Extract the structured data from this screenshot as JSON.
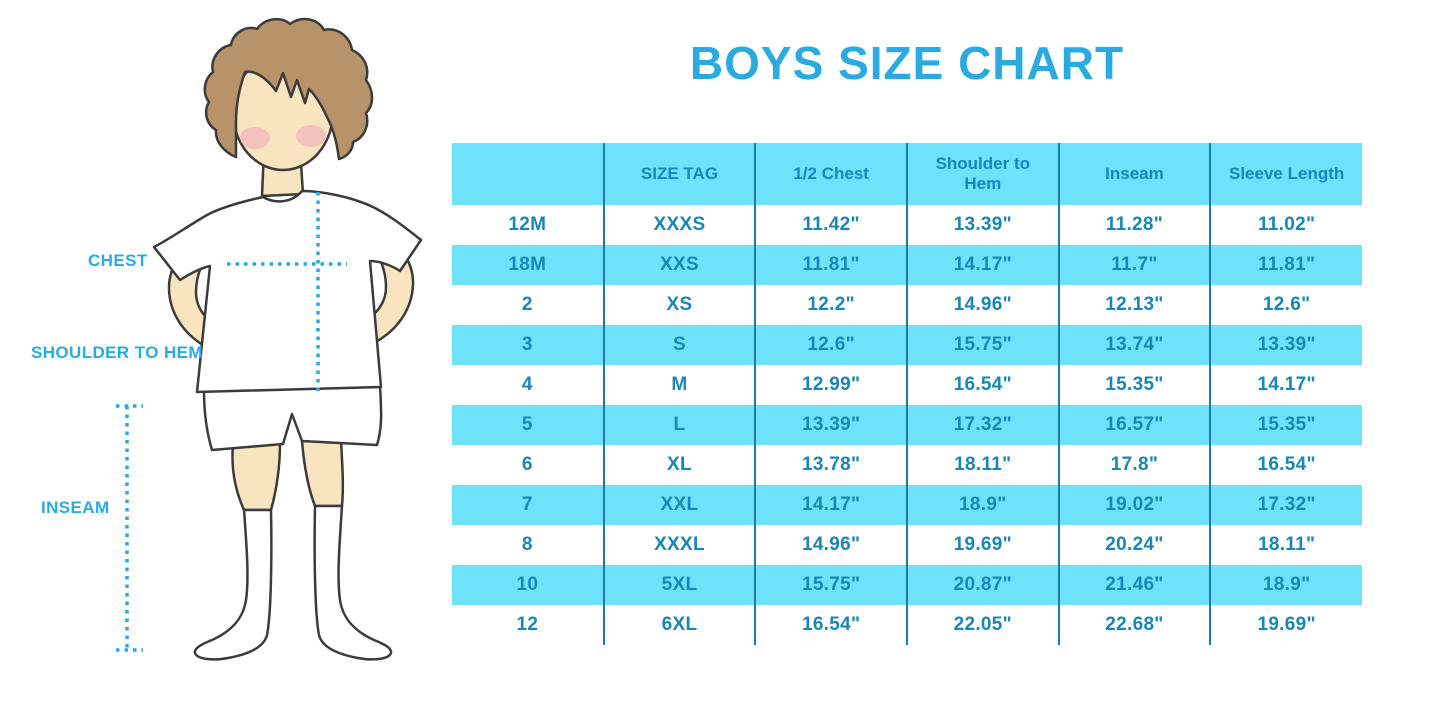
{
  "theme": {
    "accent": "#29ABE2",
    "table_fill": "#6FE2FB",
    "table_text": "#1886B8",
    "divider": "#1A7CA9",
    "skin": "#F8E4BE",
    "hair": "#B8936A",
    "outline": "#3B3B3B",
    "blush": "#F0A4BE",
    "garment": "#FFFFFF"
  },
  "figure": {
    "labels": {
      "chest": "CHEST",
      "shoulder_to_hem": "SHOULDER TO HEM",
      "inseam": "INSEAM"
    }
  },
  "chart_data": {
    "type": "table",
    "title": "BOYS SIZE CHART",
    "columns": [
      "",
      "SIZE TAG",
      "1/2 Chest",
      "Shoulder to Hem",
      "Inseam",
      "Sleeve Length"
    ],
    "rows": [
      [
        "12M",
        "XXXS",
        "11.42\"",
        "13.39\"",
        "11.28\"",
        "11.02\""
      ],
      [
        "18M",
        "XXS",
        "11.81\"",
        "14.17\"",
        "11.7\"",
        "11.81\""
      ],
      [
        "2",
        "XS",
        "12.2\"",
        "14.96\"",
        "12.13\"",
        "12.6\""
      ],
      [
        "3",
        "S",
        "12.6\"",
        "15.75\"",
        "13.74\"",
        "13.39\""
      ],
      [
        "4",
        "M",
        "12.99\"",
        "16.54\"",
        "15.35\"",
        "14.17\""
      ],
      [
        "5",
        "L",
        "13.39\"",
        "17.32\"",
        "16.57\"",
        "15.35\""
      ],
      [
        "6",
        "XL",
        "13.78\"",
        "18.11\"",
        "17.8\"",
        "16.54\""
      ],
      [
        "7",
        "XXL",
        "14.17\"",
        "18.9\"",
        "19.02\"",
        "17.32\""
      ],
      [
        "8",
        "XXXL",
        "14.96\"",
        "19.69\"",
        "20.24\"",
        "18.11\""
      ],
      [
        "10",
        "5XL",
        "15.75\"",
        "20.87\"",
        "21.46\"",
        "18.9\""
      ],
      [
        "12",
        "6XL",
        "16.54\"",
        "22.05\"",
        "22.68\"",
        "19.69\""
      ]
    ],
    "row_stripe_pattern": "white/cyan alternating, header cyan",
    "legend": "measurements shown in inches"
  }
}
